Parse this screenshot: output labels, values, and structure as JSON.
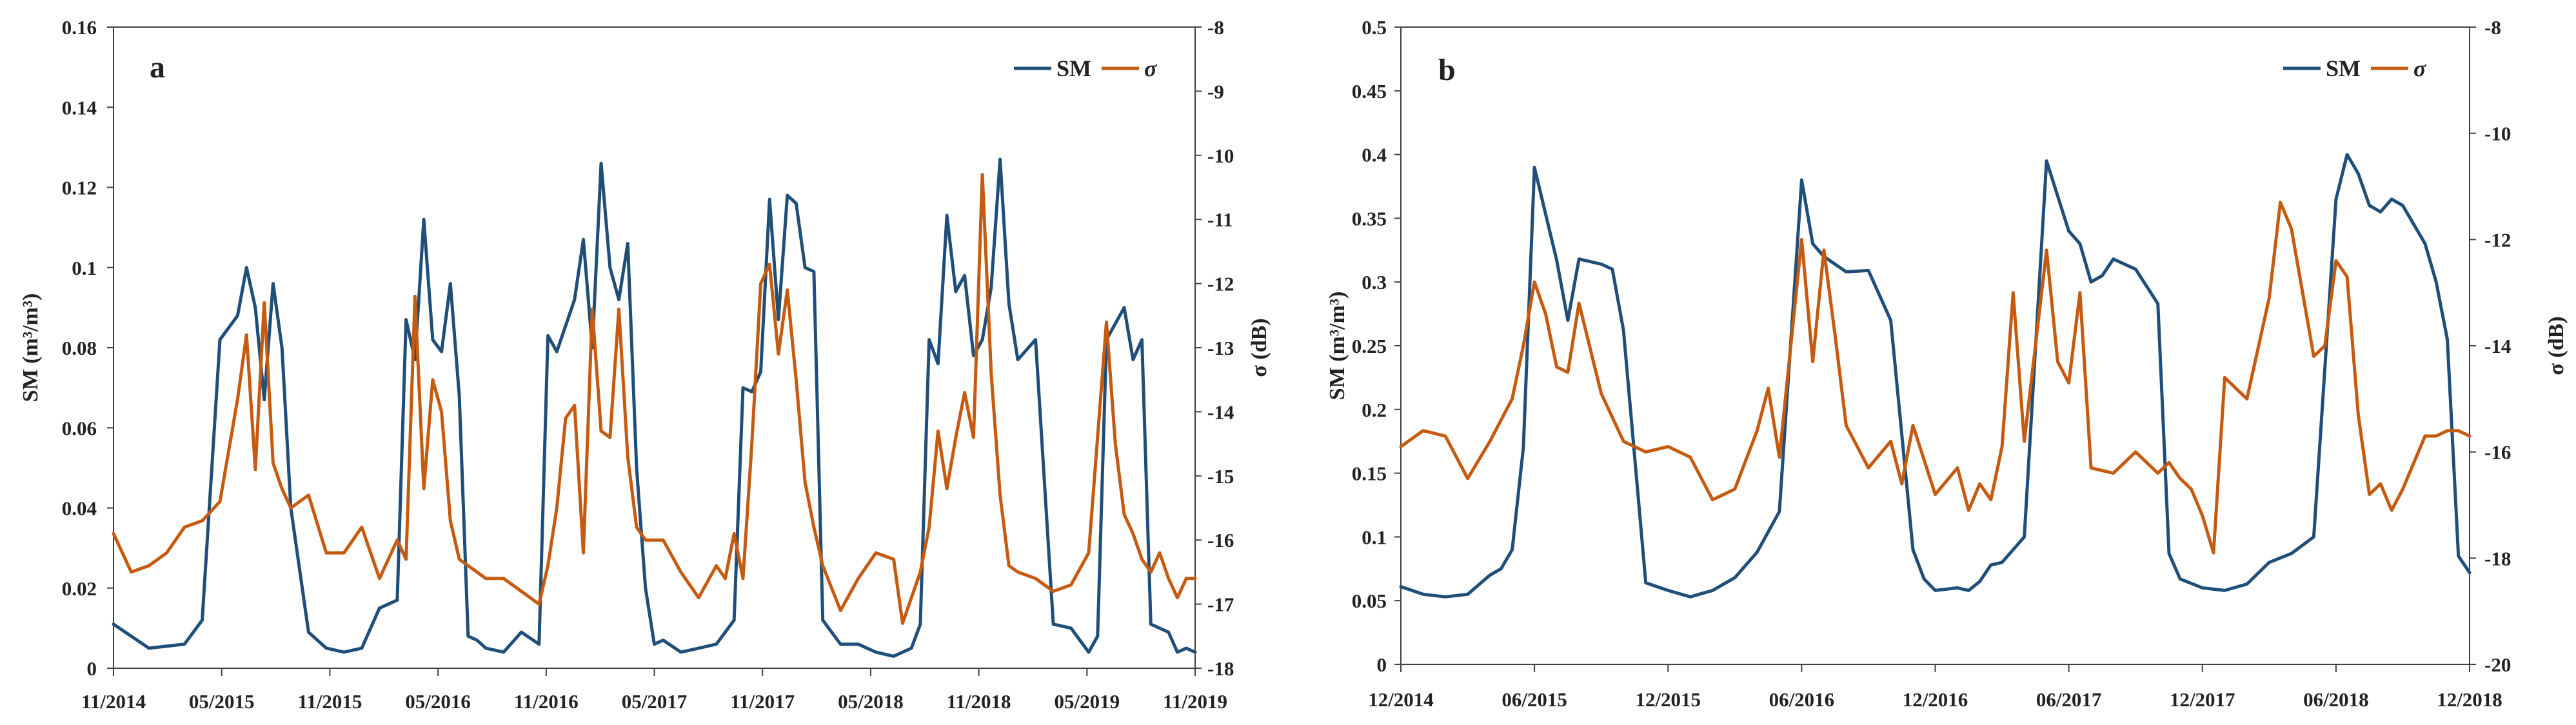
{
  "colors": {
    "sm": "#1F4E79",
    "sigma": "#C55A11",
    "axis": "#404040"
  },
  "chart_data": [
    {
      "type": "line",
      "panel_label": "a",
      "legend": [
        "SM",
        "σ"
      ],
      "ylabel_left": "SM (m³/m³)",
      "ylabel_right": "σ (dB)",
      "ylim_left": [
        0,
        0.16
      ],
      "ylim_right": [
        -18,
        -8
      ],
      "yticks_left": [
        "0",
        "0.02",
        "0.04",
        "0.06",
        "0.08",
        "0.1",
        "0.12",
        "0.14",
        "0.16"
      ],
      "yticks_right": [
        "-18",
        "-17",
        "-16",
        "-15",
        "-14",
        "-13",
        "-12",
        "-11",
        "-10",
        "-9",
        "-8"
      ],
      "xlim": [
        0,
        61
      ],
      "xticks": [
        "11/2014",
        "05/2015",
        "11/2015",
        "05/2016",
        "11/2016",
        "05/2017",
        "11/2017",
        "05/2018",
        "11/2018",
        "05/2019",
        "11/2019"
      ],
      "series": [
        {
          "name": "SM",
          "axis": "left",
          "x": [
            0,
            2,
            4,
            5,
            6,
            7,
            7.5,
            8,
            8.5,
            9,
            9.5,
            10,
            11,
            12,
            13,
            14,
            15,
            16,
            16.5,
            17,
            17.5,
            18,
            18.5,
            19,
            19.5,
            20,
            20.5,
            21,
            22,
            23,
            24,
            24.5,
            25,
            26,
            26.5,
            27,
            27.5,
            28,
            28.5,
            29,
            29.5,
            30,
            30.5,
            31,
            32,
            33,
            34,
            35,
            35.5,
            36,
            36.5,
            37,
            37.5,
            38,
            38.5,
            39,
            39.5,
            40,
            41,
            42,
            43,
            44,
            44.5,
            45,
            45.5,
            46,
            46.5,
            47,
            47.5,
            48,
            48.5,
            49,
            49.5,
            50,
            50.5,
            51,
            52,
            53,
            54,
            55,
            55.5,
            56,
            56.5,
            57,
            57.5,
            58,
            58.5,
            59,
            59.5,
            60,
            60.5,
            61
          ],
          "values": [
            0.011,
            0.005,
            0.006,
            0.012,
            0.082,
            0.088,
            0.1,
            0.09,
            0.067,
            0.096,
            0.08,
            0.04,
            0.009,
            0.005,
            0.004,
            0.005,
            0.015,
            0.017,
            0.087,
            0.077,
            0.112,
            0.082,
            0.079,
            0.096,
            0.068,
            0.008,
            0.007,
            0.005,
            0.004,
            0.009,
            0.006,
            0.083,
            0.079,
            0.092,
            0.107,
            0.08,
            0.126,
            0.1,
            0.092,
            0.106,
            0.05,
            0.02,
            0.006,
            0.007,
            0.004,
            0.005,
            0.006,
            0.012,
            0.07,
            0.069,
            0.074,
            0.117,
            0.087,
            0.118,
            0.116,
            0.1,
            0.099,
            0.012,
            0.006,
            0.006,
            0.004,
            0.003,
            0.004,
            0.005,
            0.011,
            0.082,
            0.076,
            0.113,
            0.094,
            0.098,
            0.078,
            0.082,
            0.095,
            0.127,
            0.091,
            0.077,
            0.082,
            0.011,
            0.01,
            0.004,
            0.008,
            0.082,
            0.086,
            0.09,
            0.077,
            0.082,
            0.011,
            0.01,
            0.009,
            0.004,
            0.005,
            0.004
          ],
          "note": "x values are positions in months from 11/2014"
        },
        {
          "name": "σ",
          "axis": "right",
          "x": [
            0,
            1,
            2,
            3,
            4,
            5,
            6,
            7,
            7.5,
            8,
            8.5,
            9,
            9.5,
            10,
            11,
            12,
            13,
            14,
            15,
            16,
            16.5,
            17,
            17.5,
            18,
            18.5,
            19,
            19.5,
            20,
            21,
            22,
            23,
            24,
            24.5,
            25,
            25.5,
            26,
            26.5,
            27,
            27.5,
            28,
            28.5,
            29,
            29.5,
            30,
            31,
            32,
            33,
            34,
            34.5,
            35,
            35.5,
            36,
            36.5,
            37,
            37.5,
            38,
            38.5,
            39,
            39.5,
            40,
            41,
            42,
            43,
            44,
            44.5,
            45,
            45.5,
            46,
            46.5,
            47,
            47.5,
            48,
            48.5,
            49,
            49.5,
            50,
            50.5,
            51,
            52,
            53,
            54,
            55,
            56,
            56.5,
            57,
            57.5,
            58,
            58.5,
            59,
            59.5,
            60,
            60.5,
            61
          ],
          "values": [
            -15.9,
            -16.5,
            -16.4,
            -16.2,
            -15.8,
            -15.7,
            -15.4,
            -13.8,
            -12.8,
            -14.9,
            -12.3,
            -14.8,
            -15.2,
            -15.5,
            -15.3,
            -16.2,
            -16.2,
            -15.8,
            -16.6,
            -16,
            -16.3,
            -12.2,
            -15.2,
            -13.5,
            -14,
            -15.7,
            -16.3,
            -16.4,
            -16.6,
            -16.6,
            -16.8,
            -17,
            -16.4,
            -15.5,
            -14.1,
            -13.9,
            -16.2,
            -12.4,
            -14.3,
            -14.4,
            -12.4,
            -14.7,
            -15.8,
            -16,
            -16,
            -16.5,
            -16.9,
            -16.4,
            -16.6,
            -15.9,
            -16.6,
            -14.5,
            -12,
            -11.7,
            -13.1,
            -12.1,
            -13.5,
            -15.1,
            -15.8,
            -16.4,
            -17.1,
            -16.6,
            -16.2,
            -16.3,
            -17.3,
            -16.9,
            -16.5,
            -15.8,
            -14.3,
            -15.2,
            -14.4,
            -13.7,
            -14.4,
            -10.3,
            -13.4,
            -15.3,
            -16.4,
            -16.5,
            -16.6,
            -16.8,
            -16.7,
            -16.2,
            -12.6,
            -14.5,
            -15.6,
            -15.9,
            -16.3,
            -16.5,
            -16.2,
            -16.6,
            -16.9,
            -16.6,
            -16.6
          ],
          "note": "x values are positions in months from 11/2014"
        }
      ]
    },
    {
      "type": "line",
      "panel_label": "b",
      "legend": [
        "SM",
        "σ"
      ],
      "ylabel_left": "SM (m³/m³)",
      "ylabel_right": "σ (dB)",
      "ylim_left": [
        0,
        0.5
      ],
      "ylim_right": [
        -20,
        -8
      ],
      "yticks_left": [
        "0",
        "0.05",
        "0.1",
        "0.15",
        "0.2",
        "0.25",
        "0.3",
        "0.35",
        "0.4",
        "0.45",
        "0.5"
      ],
      "yticks_right": [
        "-20",
        "-18",
        "-16",
        "-14",
        "-12",
        "-10",
        "-8"
      ],
      "xlim": [
        0,
        48
      ],
      "xticks": [
        "12/2014",
        "06/2015",
        "12/2015",
        "06/2016",
        "12/2016",
        "06/2017",
        "12/2017",
        "06/2018",
        "12/2018"
      ],
      "series": [
        {
          "name": "SM",
          "axis": "left",
          "x": [
            0,
            1,
            2,
            3,
            4,
            4.5,
            5,
            5.5,
            6,
            7,
            7.5,
            8,
            9,
            9.5,
            10,
            11,
            12,
            13,
            14,
            15,
            16,
            17,
            18,
            18.5,
            19,
            20,
            21,
            22,
            23,
            23.5,
            24,
            25,
            25.5,
            26,
            26.5,
            27,
            28,
            29,
            30,
            30.5,
            31,
            31.5,
            32,
            33,
            34,
            34.5,
            35,
            36,
            37,
            38,
            39,
            40,
            41,
            42,
            42.5,
            43,
            43.5,
            44,
            44.5,
            45,
            45.5,
            46,
            46.5,
            47,
            47.5,
            48
          ],
          "values": [
            0.061,
            0.055,
            0.053,
            0.055,
            0.07,
            0.075,
            0.09,
            0.17,
            0.39,
            0.317,
            0.27,
            0.318,
            0.314,
            0.31,
            0.262,
            0.064,
            0.058,
            0.053,
            0.058,
            0.068,
            0.088,
            0.12,
            0.38,
            0.33,
            0.32,
            0.308,
            0.309,
            0.27,
            0.09,
            0.067,
            0.058,
            0.06,
            0.058,
            0.065,
            0.078,
            0.08,
            0.1,
            0.395,
            0.34,
            0.33,
            0.3,
            0.305,
            0.318,
            0.31,
            0.283,
            0.087,
            0.067,
            0.06,
            0.058,
            0.063,
            0.08,
            0.087,
            0.1,
            0.365,
            0.4,
            0.385,
            0.36,
            0.355,
            0.365,
            0.36,
            0.345,
            0.33,
            0.3,
            0.255,
            0.085,
            0.072
          ],
          "note": "x values are positions in months from 12/2014"
        },
        {
          "name": "σ",
          "axis": "right",
          "x": [
            0,
            1,
            2,
            3,
            4,
            5,
            5.5,
            6,
            6.5,
            7,
            7.5,
            8,
            9,
            10,
            11,
            12,
            13,
            14,
            15,
            16,
            16.5,
            17,
            18,
            18.5,
            19,
            19.5,
            20,
            21,
            22,
            22.5,
            23,
            24,
            25,
            25.5,
            26,
            26.5,
            27,
            27.5,
            28,
            29,
            29.5,
            30,
            30.5,
            31,
            32,
            33,
            34,
            34.5,
            35,
            35.5,
            36,
            36.5,
            37,
            38,
            39,
            39.5,
            40,
            41,
            41.5,
            42,
            42.5,
            43,
            43.5,
            44,
            44.5,
            45,
            45.5,
            46,
            46.5,
            47,
            47.5,
            48
          ],
          "values": [
            -15.9,
            -15.6,
            -15.7,
            -16.5,
            -15.8,
            -15,
            -14,
            -12.8,
            -13.4,
            -14.4,
            -14.5,
            -13.2,
            -14.9,
            -15.8,
            -16,
            -15.9,
            -16.1,
            -16.9,
            -16.7,
            -15.6,
            -14.8,
            -16.1,
            -12,
            -14.3,
            -12.2,
            -13.8,
            -15.5,
            -16.3,
            -15.8,
            -16.6,
            -15.5,
            -16.8,
            -16.3,
            -17.1,
            -16.6,
            -16.9,
            -15.9,
            -13,
            -15.8,
            -12.2,
            -14.3,
            -14.7,
            -13,
            -16.3,
            -16.4,
            -16,
            -16.4,
            -16.2,
            -16.5,
            -16.7,
            -17.2,
            -17.9,
            -14.6,
            -15,
            -13.1,
            -11.3,
            -11.8,
            -14.2,
            -14,
            -12.4,
            -12.7,
            -15.3,
            -16.8,
            -16.6,
            -17.1,
            -16.7,
            -16.2,
            -15.7,
            -15.7,
            -15.6,
            -15.6,
            -15.7
          ],
          "note": "x values are positions in months from 12/2014"
        }
      ]
    }
  ]
}
